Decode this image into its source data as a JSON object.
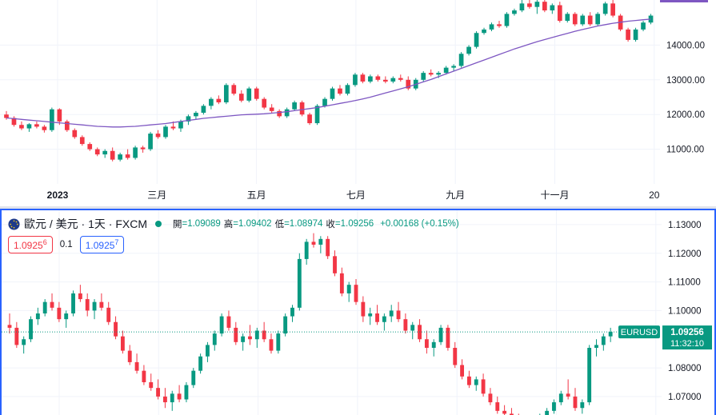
{
  "chart_data": [
    {
      "type": "candlestick",
      "pane": "top",
      "title": "",
      "x_ticks": [
        "2023",
        "三月",
        "五月",
        "七月",
        "九月",
        "十一月",
        "20"
      ],
      "y_ticks": [
        "14000.00",
        "13000.00",
        "12000.00",
        "11000.00"
      ],
      "ylim": [
        10000,
        15300
      ],
      "ma_series_color": "#7e57c2",
      "candles": [
        [
          12000,
          12100,
          11850,
          11900
        ],
        [
          11900,
          11950,
          11650,
          11700
        ],
        [
          11700,
          11800,
          11550,
          11600
        ],
        [
          11600,
          11750,
          11500,
          11720
        ],
        [
          11720,
          11800,
          11600,
          11650
        ],
        [
          11650,
          11700,
          11480,
          11550
        ],
        [
          11550,
          12200,
          11500,
          12150
        ],
        [
          12150,
          12180,
          11700,
          11800
        ],
        [
          11800,
          11850,
          11500,
          11550
        ],
        [
          11550,
          11600,
          11300,
          11350
        ],
        [
          11350,
          11400,
          11100,
          11150
        ],
        [
          11150,
          11200,
          10950,
          11000
        ],
        [
          11000,
          11050,
          10800,
          10850
        ],
        [
          10850,
          11000,
          10750,
          10950
        ],
        [
          10950,
          11050,
          10650,
          10700
        ],
        [
          10700,
          10900,
          10650,
          10850
        ],
        [
          10850,
          11000,
          10700,
          10750
        ],
        [
          10750,
          11100,
          10700,
          11050
        ],
        [
          11050,
          11100,
          10900,
          11000
        ],
        [
          11000,
          11500,
          10950,
          11450
        ],
        [
          11450,
          11550,
          11300,
          11350
        ],
        [
          11350,
          11700,
          11300,
          11650
        ],
        [
          11650,
          11800,
          11550,
          11600
        ],
        [
          11600,
          11850,
          11500,
          11800
        ],
        [
          11800,
          12000,
          11700,
          11950
        ],
        [
          11950,
          12100,
          11850,
          12050
        ],
        [
          12050,
          12300,
          12000,
          12250
        ],
        [
          12250,
          12500,
          12150,
          12450
        ],
        [
          12450,
          12550,
          12300,
          12350
        ],
        [
          12350,
          12900,
          12300,
          12850
        ],
        [
          12850,
          12900,
          12550,
          12600
        ],
        [
          12600,
          12700,
          12350,
          12400
        ],
        [
          12400,
          12800,
          12350,
          12750
        ],
        [
          12750,
          12800,
          12400,
          12450
        ],
        [
          12450,
          12500,
          12150,
          12200
        ],
        [
          12200,
          12300,
          12050,
          12100
        ],
        [
          12100,
          12150,
          11900,
          11950
        ],
        [
          11950,
          12200,
          11900,
          12150
        ],
        [
          12150,
          12400,
          12100,
          12350
        ],
        [
          12350,
          12400,
          11950,
          12000
        ],
        [
          12000,
          12050,
          11700,
          11750
        ],
        [
          11750,
          12300,
          11700,
          12250
        ],
        [
          12250,
          12500,
          12200,
          12450
        ],
        [
          12450,
          12800,
          12400,
          12750
        ],
        [
          12750,
          12850,
          12550,
          12600
        ],
        [
          12600,
          12900,
          12550,
          12850
        ],
        [
          12850,
          13200,
          12800,
          13150
        ],
        [
          13150,
          13200,
          12900,
          12950
        ],
        [
          12950,
          13150,
          12900,
          13100
        ],
        [
          13100,
          13150,
          12950,
          13000
        ],
        [
          13000,
          13100,
          12900,
          12950
        ],
        [
          12950,
          13100,
          12900,
          13050
        ],
        [
          13050,
          13150,
          12950,
          13000
        ],
        [
          13000,
          13100,
          12700,
          12750
        ],
        [
          12750,
          13050,
          12700,
          13000
        ],
        [
          13000,
          13250,
          12950,
          13200
        ],
        [
          13200,
          13300,
          13100,
          13150
        ],
        [
          13150,
          13250,
          13050,
          13200
        ],
        [
          13200,
          13400,
          13150,
          13350
        ],
        [
          13350,
          13450,
          13250,
          13400
        ],
        [
          13400,
          13800,
          13350,
          13750
        ],
        [
          13750,
          14000,
          13700,
          13950
        ],
        [
          13950,
          14400,
          13900,
          14350
        ],
        [
          14350,
          14500,
          14300,
          14450
        ],
        [
          14450,
          14650,
          14400,
          14600
        ],
        [
          14600,
          14700,
          14500,
          14550
        ],
        [
          14550,
          14950,
          14500,
          14900
        ],
        [
          14900,
          15050,
          14850,
          15000
        ],
        [
          15000,
          15300,
          14950,
          15200
        ],
        [
          15200,
          15300,
          15050,
          15100
        ],
        [
          15100,
          15300,
          14900,
          15250
        ],
        [
          15250,
          15300,
          14950,
          15000
        ],
        [
          15000,
          15200,
          14900,
          15150
        ],
        [
          15150,
          15250,
          14650,
          14700
        ],
        [
          14700,
          14950,
          14650,
          14900
        ],
        [
          14900,
          14950,
          14550,
          14600
        ],
        [
          14600,
          14900,
          14550,
          14850
        ],
        [
          14850,
          14950,
          14550,
          14600
        ],
        [
          14600,
          14950,
          14550,
          14900
        ],
        [
          14900,
          15250,
          14850,
          15200
        ],
        [
          15200,
          15300,
          14800,
          14850
        ],
        [
          14850,
          14900,
          14400,
          14450
        ],
        [
          14450,
          14500,
          14100,
          14150
        ],
        [
          14150,
          14500,
          14100,
          14450
        ],
        [
          14450,
          14700,
          14400,
          14650
        ],
        [
          14650,
          14900,
          14600,
          14850
        ]
      ],
      "ma_values": [
        11900,
        11880,
        11860,
        11840,
        11820,
        11800,
        11780,
        11760,
        11740,
        11720,
        11700,
        11680,
        11660,
        11650,
        11640,
        11640,
        11650,
        11660,
        11680,
        11700,
        11720,
        11740,
        11770,
        11800,
        11830,
        11860,
        11890,
        11910,
        11930,
        11950,
        11970,
        11990,
        12000,
        12010,
        12020,
        12040,
        12060,
        12080,
        12110,
        12140,
        12170,
        12200,
        12240,
        12280,
        12320,
        12360,
        12400,
        12450,
        12500,
        12560,
        12620,
        12680,
        12740,
        12800,
        12870,
        12940,
        13010,
        13090,
        13170,
        13250,
        13330,
        13410,
        13490,
        13570,
        13650,
        13730,
        13810,
        13890,
        13960,
        14030,
        14100,
        14160,
        14220,
        14280,
        14340,
        14400,
        14450,
        14500,
        14550,
        14590,
        14630,
        14660,
        14690,
        14710,
        14730,
        14750
      ]
    },
    {
      "type": "candlestick",
      "pane": "bottom",
      "title": "",
      "x_ticks": [],
      "y_ticks": [
        "1.13000",
        "1.12000",
        "1.11000",
        "1.10000",
        "1.08000",
        "1.07000"
      ],
      "ylim": [
        1.063,
        1.135
      ],
      "last_price": 1.09256,
      "candles": [
        [
          1.095,
          1.099,
          1.092,
          1.094
        ],
        [
          1.094,
          1.096,
          1.087,
          1.088
        ],
        [
          1.088,
          1.091,
          1.085,
          1.09
        ],
        [
          1.09,
          1.098,
          1.089,
          1.097
        ],
        [
          1.097,
          1.101,
          1.095,
          1.099
        ],
        [
          1.099,
          1.104,
          1.098,
          1.103
        ],
        [
          1.103,
          1.106,
          1.1,
          1.101
        ],
        [
          1.101,
          1.103,
          1.096,
          1.097
        ],
        [
          1.097,
          1.1,
          1.094,
          1.099
        ],
        [
          1.099,
          1.107,
          1.098,
          1.106
        ],
        [
          1.106,
          1.109,
          1.103,
          1.104
        ],
        [
          1.104,
          1.106,
          1.098,
          1.1
        ],
        [
          1.1,
          1.104,
          1.097,
          1.103
        ],
        [
          1.103,
          1.106,
          1.1,
          1.101
        ],
        [
          1.101,
          1.103,
          1.095,
          1.096
        ],
        [
          1.096,
          1.098,
          1.09,
          1.091
        ],
        [
          1.091,
          1.093,
          1.085,
          1.086
        ],
        [
          1.086,
          1.088,
          1.081,
          1.082
        ],
        [
          1.082,
          1.085,
          1.078,
          1.079
        ],
        [
          1.079,
          1.081,
          1.074,
          1.075
        ],
        [
          1.075,
          1.078,
          1.072,
          1.073
        ],
        [
          1.073,
          1.076,
          1.069,
          1.07
        ],
        [
          1.07,
          1.073,
          1.066,
          1.068
        ],
        [
          1.068,
          1.072,
          1.065,
          1.071
        ],
        [
          1.071,
          1.074,
          1.068,
          1.069
        ],
        [
          1.069,
          1.075,
          1.068,
          1.074
        ],
        [
          1.074,
          1.08,
          1.073,
          1.079
        ],
        [
          1.079,
          1.085,
          1.078,
          1.084
        ],
        [
          1.084,
          1.089,
          1.082,
          1.088
        ],
        [
          1.088,
          1.093,
          1.086,
          1.092
        ],
        [
          1.092,
          1.099,
          1.091,
          1.098
        ],
        [
          1.098,
          1.1,
          1.093,
          1.094
        ],
        [
          1.094,
          1.096,
          1.088,
          1.089
        ],
        [
          1.089,
          1.092,
          1.086,
          1.091
        ],
        [
          1.091,
          1.095,
          1.088,
          1.09
        ],
        [
          1.09,
          1.094,
          1.087,
          1.093
        ],
        [
          1.093,
          1.096,
          1.089,
          1.09
        ],
        [
          1.09,
          1.092,
          1.085,
          1.086
        ],
        [
          1.086,
          1.093,
          1.085,
          1.092
        ],
        [
          1.092,
          1.099,
          1.091,
          1.098
        ],
        [
          1.098,
          1.102,
          1.096,
          1.101
        ],
        [
          1.101,
          1.12,
          1.1,
          1.118
        ],
        [
          1.118,
          1.125,
          1.116,
          1.124
        ],
        [
          1.124,
          1.127,
          1.122,
          1.123
        ],
        [
          1.123,
          1.126,
          1.12,
          1.125
        ],
        [
          1.125,
          1.126,
          1.118,
          1.119
        ],
        [
          1.119,
          1.121,
          1.112,
          1.113
        ],
        [
          1.113,
          1.115,
          1.105,
          1.106
        ],
        [
          1.106,
          1.11,
          1.103,
          1.109
        ],
        [
          1.109,
          1.111,
          1.102,
          1.103
        ],
        [
          1.103,
          1.105,
          1.096,
          1.098
        ],
        [
          1.098,
          1.101,
          1.095,
          1.099
        ],
        [
          1.099,
          1.102,
          1.095,
          1.096
        ],
        [
          1.096,
          1.099,
          1.093,
          1.098
        ],
        [
          1.098,
          1.102,
          1.096,
          1.1
        ],
        [
          1.1,
          1.103,
          1.096,
          1.097
        ],
        [
          1.097,
          1.099,
          1.092,
          1.093
        ],
        [
          1.093,
          1.096,
          1.09,
          1.095
        ],
        [
          1.095,
          1.097,
          1.089,
          1.09
        ],
        [
          1.09,
          1.093,
          1.085,
          1.087
        ],
        [
          1.087,
          1.09,
          1.084,
          1.089
        ],
        [
          1.089,
          1.095,
          1.088,
          1.094
        ],
        [
          1.094,
          1.095,
          1.086,
          1.087
        ],
        [
          1.087,
          1.089,
          1.08,
          1.081
        ],
        [
          1.081,
          1.083,
          1.076,
          1.077
        ],
        [
          1.077,
          1.079,
          1.073,
          1.074
        ],
        [
          1.074,
          1.077,
          1.072,
          1.076
        ],
        [
          1.076,
          1.078,
          1.07,
          1.071
        ],
        [
          1.071,
          1.073,
          1.067,
          1.068
        ],
        [
          1.068,
          1.07,
          1.064,
          1.065
        ],
        [
          1.065,
          1.067,
          1.062,
          1.064
        ],
        [
          1.064,
          1.066,
          1.06,
          1.062
        ],
        [
          1.062,
          1.064,
          1.059,
          1.061
        ],
        [
          1.061,
          1.063,
          1.058,
          1.06
        ],
        [
          1.06,
          1.062,
          1.057,
          1.061
        ],
        [
          1.061,
          1.064,
          1.059,
          1.063
        ],
        [
          1.063,
          1.066,
          1.061,
          1.065
        ],
        [
          1.065,
          1.069,
          1.064,
          1.068
        ],
        [
          1.068,
          1.072,
          1.067,
          1.071
        ],
        [
          1.071,
          1.076,
          1.069,
          1.07
        ],
        [
          1.07,
          1.073,
          1.065,
          1.066
        ],
        [
          1.066,
          1.069,
          1.064,
          1.068
        ],
        [
          1.068,
          1.088,
          1.067,
          1.087
        ],
        [
          1.087,
          1.09,
          1.084,
          1.088
        ],
        [
          1.088,
          1.092,
          1.086,
          1.091
        ],
        [
          1.091,
          1.094,
          1.089,
          1.0926
        ]
      ]
    }
  ],
  "bottom_pane": {
    "symbol": "歐元 / 美元 · 1天 · FXCM",
    "ohlc": {
      "open_label": "開",
      "open": "=1.09089",
      "high_label": "高",
      "high": "=1.09402",
      "low_label": "低",
      "low": "=1.08974",
      "close_label": "收",
      "close": "=1.09256",
      "change": "+0.00168 (+0.15%)"
    },
    "sell_price": "1.0925",
    "sell_sup": "6",
    "spread": "0.1",
    "buy_price": "1.0925",
    "buy_sup": "7",
    "price_tag_symbol": "EURUSD",
    "price_tag_value": "1.09256",
    "price_tag_countdown": "11:32:10"
  },
  "colors": {
    "up": "#089981",
    "down": "#f23645",
    "ma": "#7e57c2",
    "accent": "#2962ff"
  }
}
